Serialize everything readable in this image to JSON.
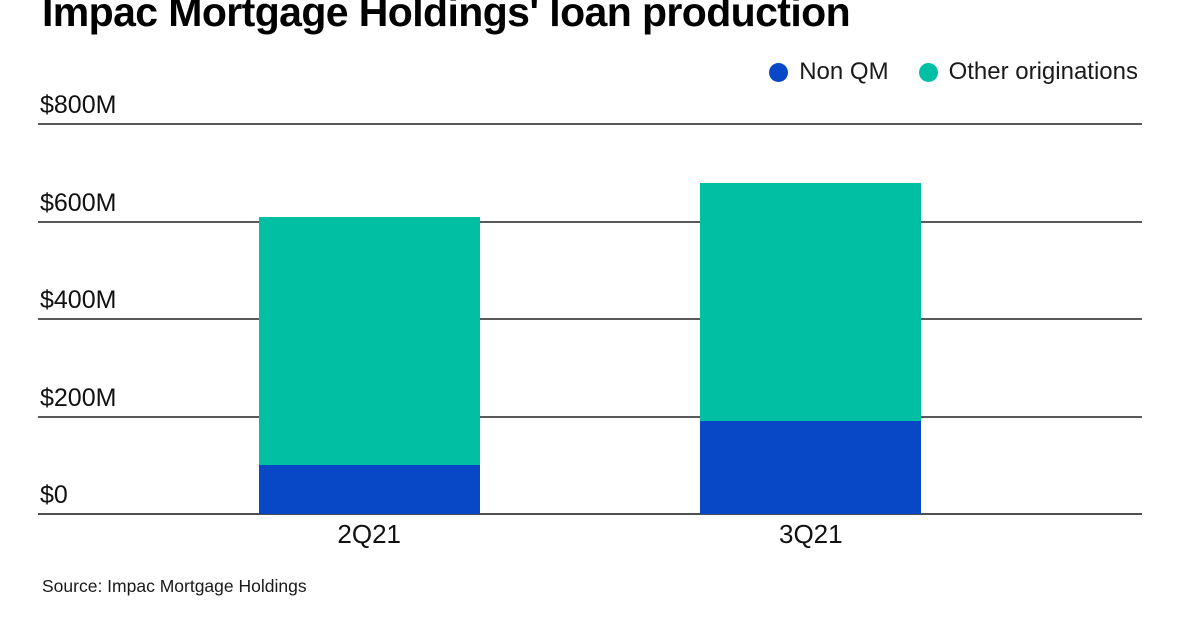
{
  "chart_data": {
    "type": "bar",
    "stacked": true,
    "title": "Impac Mortgage Holdings' loan production",
    "categories": [
      "2Q21",
      "3Q21"
    ],
    "series": [
      {
        "name": "Non QM",
        "color": "#0847c5",
        "values": [
          100,
          190
        ]
      },
      {
        "name": "Other originations",
        "color": "#00bfa2",
        "values": [
          510,
          490
        ]
      }
    ],
    "totals": [
      610,
      680
    ],
    "units": "USD millions",
    "xlabel": "",
    "ylabel": "",
    "ylim": [
      0,
      800
    ],
    "yticks": [
      {
        "value": 800,
        "label": "$800M"
      },
      {
        "value": 600,
        "label": "$600M"
      },
      {
        "value": 400,
        "label": "$400M"
      },
      {
        "value": 200,
        "label": "$200M"
      },
      {
        "value": 0,
        "label": "$0"
      }
    ],
    "grid": true,
    "legend_position": "top-right"
  },
  "footer": {
    "source": "Source: Impac Mortgage Holdings"
  },
  "colors": {
    "background": "#ffffff",
    "gridline": "#58595b",
    "text": "#111111",
    "non_qm_blue": "#0847c5",
    "other_teal": "#00bfa2"
  }
}
